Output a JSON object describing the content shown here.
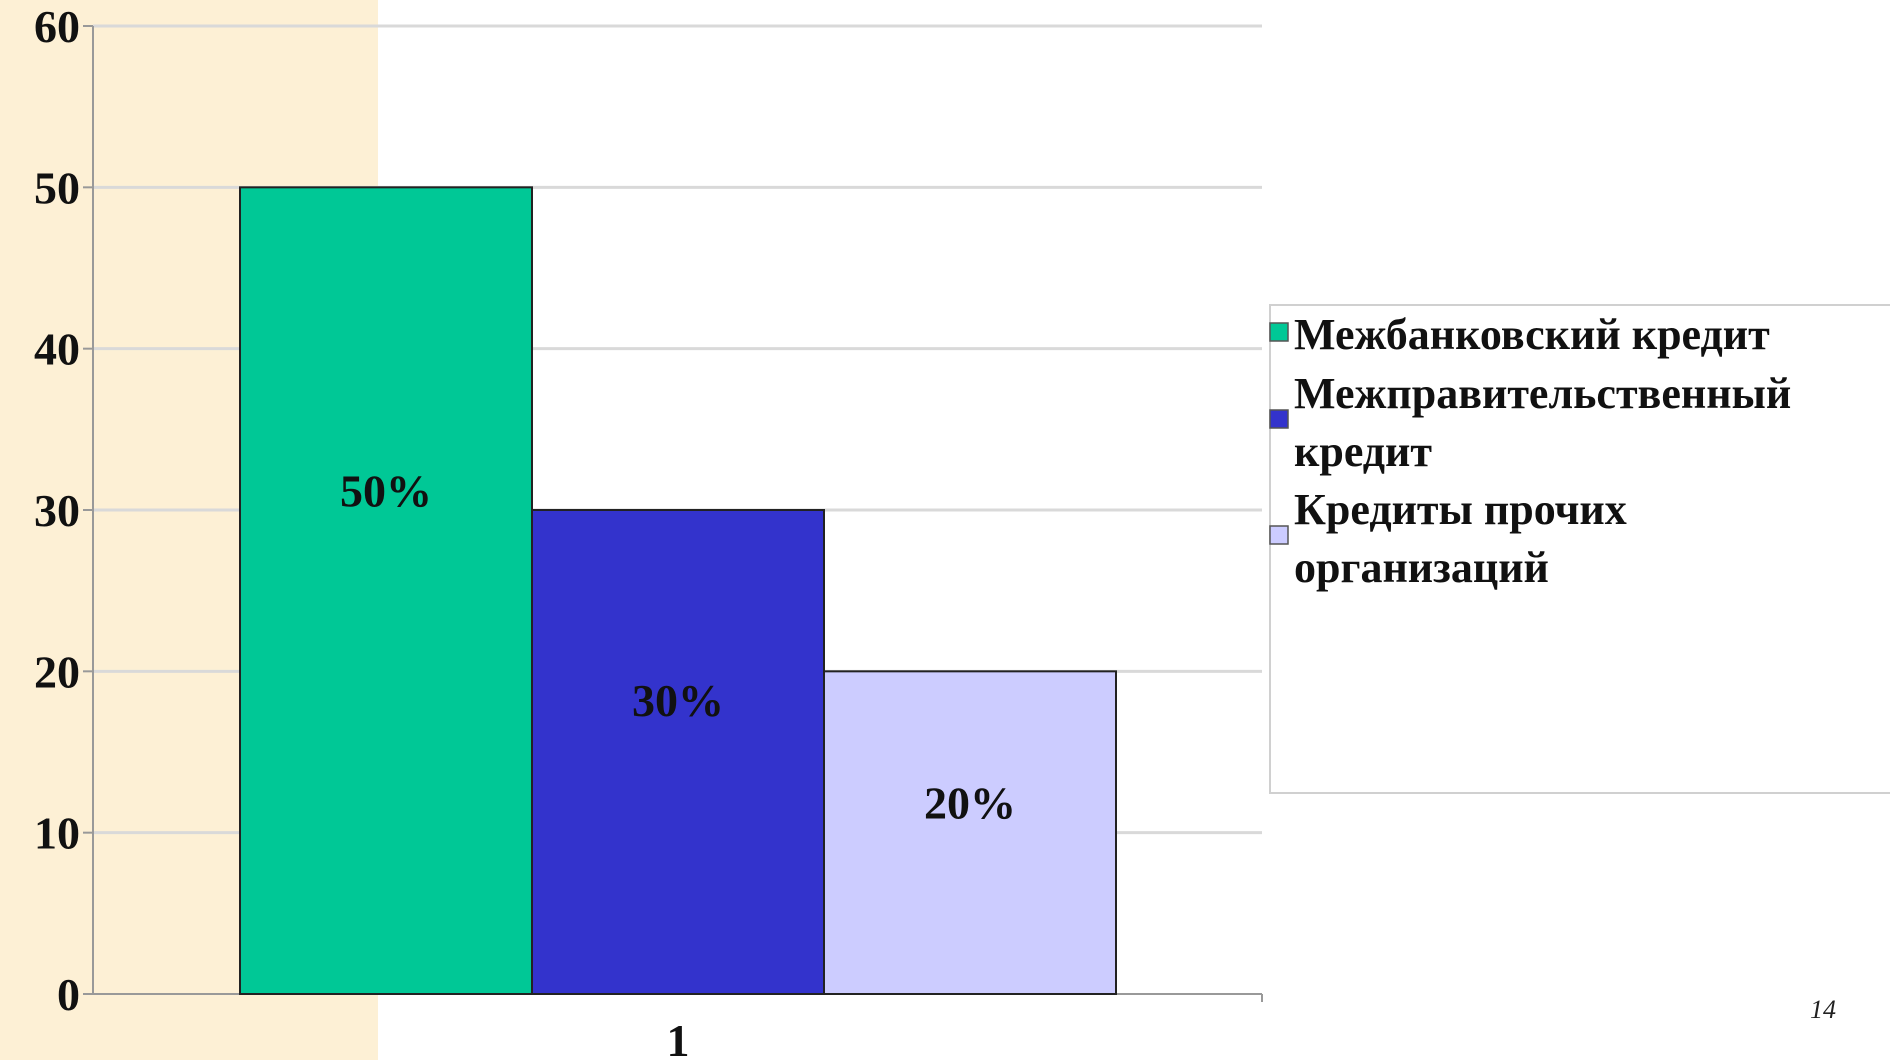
{
  "chart_data": {
    "type": "bar",
    "categories": [
      "1"
    ],
    "series": [
      {
        "name": "Межбанковский кредит",
        "values": [
          50
        ],
        "label": "50%",
        "color": "#00C896"
      },
      {
        "name": "Межправительственный кредит",
        "values": [
          30
        ],
        "label": "30%",
        "color": "#3333CC"
      },
      {
        "name": "Кредиты прочих организаций",
        "values": [
          20
        ],
        "label": "20%",
        "color": "#CCCCFF"
      }
    ],
    "yticks": [
      "0",
      "10",
      "20",
      "30",
      "40",
      "50",
      "60"
    ],
    "ylim": [
      0,
      60
    ],
    "grid": true,
    "legend_position": "right"
  },
  "legend": {
    "lines": [
      [
        "Межбанковский кредит"
      ],
      [
        "Межправительственный",
        "кредит"
      ],
      [
        "Кредиты прочих",
        "организаций"
      ]
    ]
  },
  "page_number": "14",
  "colors": {
    "left_band": "#FDF0D5",
    "gridline": "#D9D9D9",
    "bar_border": "#222222"
  }
}
